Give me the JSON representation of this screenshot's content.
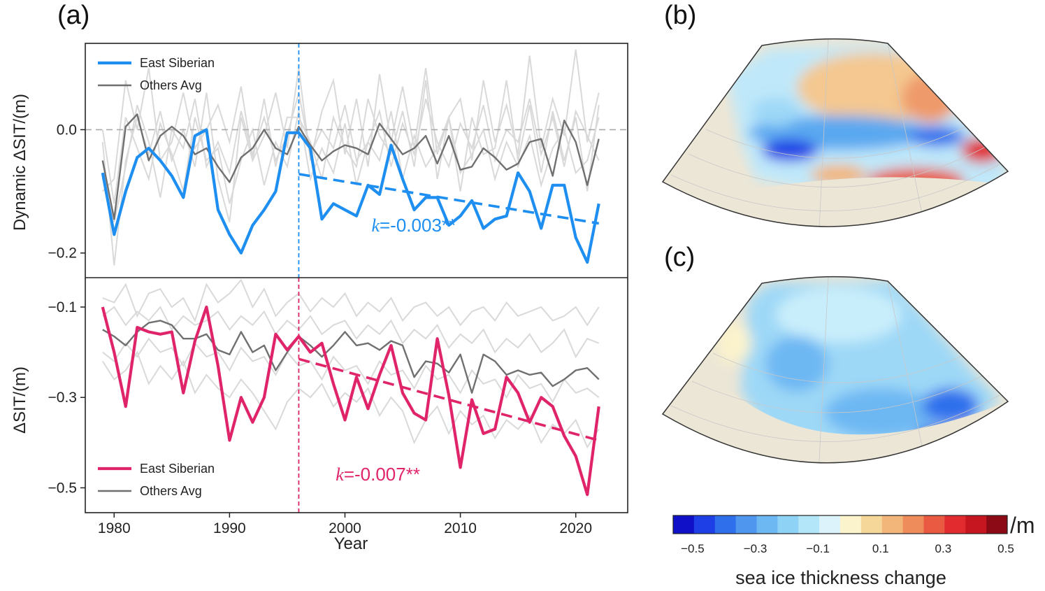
{
  "panel_labels": {
    "a": "(a)",
    "b": "(b)",
    "c": "(c)"
  },
  "colors": {
    "east_siberian_top": "#1e8ff0",
    "east_siberian_bottom": "#e0246a",
    "others_avg": "#707070",
    "individual_regions": "#d9d9d9",
    "zero_line": "#aaaaaa",
    "land": "#ece6d6"
  },
  "chart_data": [
    {
      "type": "line",
      "panel": "a-top",
      "xlabel": "",
      "ylabel": "Dynamic ΔSIT/(m)",
      "xlim": [
        1977.5,
        2024.5
      ],
      "ylim": [
        -0.24,
        0.14
      ],
      "xticks": [
        1980,
        1990,
        2000,
        2010,
        2020
      ],
      "yticks": [
        0.0,
        -0.2
      ],
      "ytick_labels": [
        "0.0",
        "−0.2"
      ],
      "reference_line_y": 0.0,
      "breakpoint_year": 1996,
      "legend": {
        "placement": "top-left",
        "entries": [
          "East Siberian",
          "Others Avg"
        ]
      },
      "x": [
        1979,
        1980,
        1981,
        1982,
        1983,
        1984,
        1985,
        1986,
        1987,
        1988,
        1989,
        1990,
        1991,
        1992,
        1993,
        1994,
        1995,
        1996,
        1997,
        1998,
        1999,
        2000,
        2001,
        2002,
        2003,
        2004,
        2005,
        2006,
        2007,
        2008,
        2009,
        2010,
        2011,
        2012,
        2013,
        2014,
        2015,
        2016,
        2017,
        2018,
        2019,
        2020,
        2021,
        2022
      ],
      "series": [
        {
          "name": "East Siberian",
          "values": [
            -0.07,
            -0.17,
            -0.1,
            -0.045,
            -0.03,
            -0.05,
            -0.075,
            -0.11,
            -0.01,
            0.0,
            -0.13,
            -0.17,
            -0.2,
            -0.155,
            -0.13,
            -0.1,
            -0.005,
            -0.005,
            -0.03,
            -0.145,
            -0.12,
            -0.13,
            -0.14,
            -0.09,
            -0.105,
            -0.025,
            -0.08,
            -0.13,
            -0.11,
            -0.11,
            -0.155,
            -0.14,
            -0.115,
            -0.16,
            -0.145,
            -0.14,
            -0.07,
            -0.1,
            -0.16,
            -0.09,
            -0.09,
            -0.175,
            -0.215,
            -0.12
          ]
        },
        {
          "name": "Others Avg",
          "values": [
            -0.05,
            -0.145,
            0.005,
            0.025,
            -0.05,
            -0.01,
            0.005,
            -0.01,
            -0.04,
            -0.03,
            -0.06,
            -0.085,
            -0.045,
            -0.03,
            0.0,
            -0.03,
            -0.04,
            0.005,
            -0.025,
            -0.05,
            -0.035,
            -0.025,
            -0.03,
            -0.04,
            0.01,
            -0.015,
            -0.04,
            -0.03,
            -0.01,
            -0.055,
            -0.01,
            -0.065,
            -0.06,
            -0.03,
            -0.045,
            -0.065,
            -0.055,
            -0.02,
            -0.015,
            -0.075,
            0.015,
            -0.02,
            -0.09,
            -0.015
          ]
        }
      ],
      "background_series": [
        [
          -0.02,
          -0.22,
          -0.05,
          0.02,
          -0.04,
          0.03,
          -0.05,
          0.0,
          -0.06,
          0.06,
          -0.08,
          -0.15,
          0.02,
          -0.05,
          0.05,
          -0.06,
          0.02,
          0.02,
          -0.02,
          -0.08,
          0.02,
          -0.03,
          -0.06,
          0.05,
          -0.01,
          -0.04,
          0.03,
          -0.06,
          0.08,
          -0.08,
          0.02,
          -0.1,
          0.02,
          -0.04,
          -0.03,
          0.08,
          -0.05,
          0.04,
          -0.07,
          0.03,
          -0.05,
          0.02,
          -0.1,
          0.04
        ],
        [
          -0.1,
          -0.08,
          0.08,
          0.0,
          0.1,
          -0.05,
          -0.02,
          0.06,
          -0.03,
          0.0,
          0.04,
          -0.02,
          0.07,
          -0.05,
          -0.01,
          0.06,
          -0.03,
          0.1,
          -0.05,
          0.03,
          0.08,
          -0.04,
          0.05,
          -0.06,
          0.09,
          -0.02,
          0.07,
          -0.03,
          0.1,
          -0.04,
          0.02,
          0.05,
          -0.05,
          0.08,
          -0.02,
          0.04,
          -0.04,
          0.12,
          -0.03,
          0.05,
          -0.01,
          0.13,
          -0.02,
          0.06
        ],
        [
          0.0,
          -0.12,
          0.02,
          -0.03,
          -0.08,
          0.01,
          -0.04,
          -0.1,
          0.02,
          -0.05,
          -0.03,
          -0.12,
          -0.05,
          0.0,
          -0.09,
          -0.02,
          -0.06,
          0.03,
          -0.08,
          -0.03,
          -0.07,
          0.01,
          -0.09,
          -0.02,
          -0.05,
          0.03,
          -0.08,
          -0.01,
          -0.06,
          -0.03,
          0.02,
          -0.07,
          -0.04,
          0.0,
          -0.08,
          -0.02,
          -0.06,
          -0.01,
          -0.09,
          -0.03,
          0.0,
          -0.07,
          -0.05,
          0.02
        ],
        [
          -0.05,
          -0.15,
          -0.06,
          0.04,
          -0.02,
          -0.11,
          0.0,
          -0.03,
          0.05,
          -0.06,
          -0.02,
          -0.07,
          0.03,
          -0.04,
          0.02,
          -0.05,
          -0.01,
          0.06,
          -0.04,
          0.0,
          -0.03,
          0.04,
          -0.05,
          -0.02,
          0.03,
          -0.06,
          0.01,
          -0.04,
          0.05,
          -0.02,
          -0.06,
          0.01,
          -0.03,
          0.04,
          -0.05,
          0.0,
          -0.02,
          0.05,
          -0.04,
          0.02,
          -0.06,
          0.03,
          -0.01,
          -0.05
        ]
      ],
      "trend": {
        "x": [
          1996,
          2022
        ],
        "y": [
          -0.072,
          -0.152
        ],
        "label_k": "k",
        "label_rest": "=-0.003**"
      }
    },
    {
      "type": "line",
      "panel": "a-bottom",
      "xlabel": "Year",
      "ylabel": "ΔSIT/(m)",
      "xlim": [
        1977.5,
        2024.5
      ],
      "ylim": [
        -0.555,
        -0.035
      ],
      "xticks": [
        1980,
        1990,
        2000,
        2010,
        2020
      ],
      "yticks": [
        -0.1,
        -0.3,
        -0.5
      ],
      "ytick_labels": [
        "−0.1",
        "−0.3",
        "−0.5"
      ],
      "breakpoint_year": 1996,
      "legend": {
        "placement": "bottom-left",
        "entries": [
          "East Siberian",
          "Others Avg"
        ]
      },
      "x": [
        1979,
        1980,
        1981,
        1982,
        1983,
        1984,
        1985,
        1986,
        1987,
        1988,
        1989,
        1990,
        1991,
        1992,
        1993,
        1994,
        1995,
        1996,
        1997,
        1998,
        1999,
        2000,
        2001,
        2002,
        2003,
        2004,
        2005,
        2006,
        2007,
        2008,
        2009,
        2010,
        2011,
        2012,
        2013,
        2014,
        2015,
        2016,
        2017,
        2018,
        2019,
        2020,
        2021,
        2022
      ],
      "series": [
        {
          "name": "East Siberian",
          "values": [
            -0.1,
            -0.2,
            -0.32,
            -0.145,
            -0.155,
            -0.16,
            -0.155,
            -0.29,
            -0.175,
            -0.1,
            -0.23,
            -0.395,
            -0.3,
            -0.355,
            -0.3,
            -0.16,
            -0.195,
            -0.165,
            -0.2,
            -0.18,
            -0.27,
            -0.35,
            -0.255,
            -0.325,
            -0.25,
            -0.185,
            -0.29,
            -0.335,
            -0.35,
            -0.17,
            -0.295,
            -0.455,
            -0.305,
            -0.38,
            -0.37,
            -0.255,
            -0.29,
            -0.355,
            -0.3,
            -0.32,
            -0.385,
            -0.43,
            -0.515,
            -0.32
          ]
        },
        {
          "name": "Others Avg",
          "values": [
            -0.15,
            -0.165,
            -0.185,
            -0.155,
            -0.135,
            -0.13,
            -0.14,
            -0.17,
            -0.17,
            -0.16,
            -0.195,
            -0.205,
            -0.155,
            -0.2,
            -0.185,
            -0.24,
            -0.2,
            -0.165,
            -0.185,
            -0.21,
            -0.185,
            -0.155,
            -0.185,
            -0.18,
            -0.195,
            -0.175,
            -0.185,
            -0.255,
            -0.22,
            -0.225,
            -0.245,
            -0.205,
            -0.29,
            -0.205,
            -0.22,
            -0.25,
            -0.24,
            -0.25,
            -0.245,
            -0.275,
            -0.26,
            -0.24,
            -0.235,
            -0.26
          ]
        }
      ],
      "background_series": [
        [
          -0.08,
          -0.09,
          -0.05,
          -0.12,
          -0.07,
          -0.06,
          -0.1,
          -0.08,
          -0.13,
          -0.05,
          -0.09,
          -0.07,
          -0.04,
          -0.1,
          -0.06,
          -0.12,
          -0.09,
          -0.07,
          -0.11,
          -0.08,
          -0.1,
          -0.07,
          -0.12,
          -0.09,
          -0.11,
          -0.08,
          -0.13,
          -0.1,
          -0.09,
          -0.12,
          -0.1,
          -0.14,
          -0.11,
          -0.1,
          -0.13,
          -0.09,
          -0.12,
          -0.11,
          -0.1,
          -0.13,
          -0.12,
          -0.1,
          -0.14,
          -0.1
        ],
        [
          -0.12,
          -0.1,
          -0.14,
          -0.11,
          -0.13,
          -0.1,
          -0.15,
          -0.12,
          -0.14,
          -0.13,
          -0.11,
          -0.15,
          -0.12,
          -0.14,
          -0.11,
          -0.16,
          -0.13,
          -0.15,
          -0.12,
          -0.16,
          -0.14,
          -0.13,
          -0.17,
          -0.14,
          -0.16,
          -0.13,
          -0.18,
          -0.15,
          -0.17,
          -0.14,
          -0.19,
          -0.16,
          -0.18,
          -0.15,
          -0.2,
          -0.17,
          -0.19,
          -0.16,
          -0.2,
          -0.18,
          -0.15,
          -0.21,
          -0.17,
          -0.18
        ],
        [
          -0.2,
          -0.22,
          -0.18,
          -0.21,
          -0.17,
          -0.2,
          -0.19,
          -0.23,
          -0.18,
          -0.21,
          -0.2,
          -0.24,
          -0.19,
          -0.22,
          -0.21,
          -0.25,
          -0.2,
          -0.23,
          -0.22,
          -0.26,
          -0.21,
          -0.24,
          -0.23,
          -0.27,
          -0.22,
          -0.25,
          -0.24,
          -0.28,
          -0.23,
          -0.26,
          -0.25,
          -0.29,
          -0.24,
          -0.27,
          -0.26,
          -0.3,
          -0.25,
          -0.28,
          -0.27,
          -0.31,
          -0.26,
          -0.29,
          -0.28,
          -0.3
        ],
        [
          -0.22,
          -0.26,
          -0.24,
          -0.2,
          -0.27,
          -0.23,
          -0.26,
          -0.22,
          -0.29,
          -0.25,
          -0.28,
          -0.3,
          -0.26,
          -0.29,
          -0.33,
          -0.37,
          -0.31,
          -0.28,
          -0.3,
          -0.27,
          -0.32,
          -0.29,
          -0.31,
          -0.28,
          -0.34,
          -0.3,
          -0.33,
          -0.4,
          -0.35,
          -0.32,
          -0.38,
          -0.33,
          -0.36,
          -0.34,
          -0.39,
          -0.35,
          -0.37,
          -0.34,
          -0.4,
          -0.36,
          -0.38,
          -0.35,
          -0.41,
          -0.37
        ]
      ],
      "trend": {
        "x": [
          1996,
          2022
        ],
        "y": [
          -0.215,
          -0.395
        ],
        "label_k": "k",
        "label_rest": "=-0.007**"
      }
    },
    {
      "type": "heatmap",
      "panel": "b",
      "description_of_content": null,
      "colorbar_shared": true
    },
    {
      "type": "heatmap",
      "panel": "c",
      "colorbar_shared": true
    }
  ],
  "colorbar": {
    "label": "sea ice thickness change",
    "unit": "/m",
    "tick_labels": [
      "−0.5",
      "−0.3",
      "−0.1",
      "0.1",
      "0.3",
      "0.5"
    ],
    "colors": [
      "#1010c8",
      "#1f3fe6",
      "#2f6fec",
      "#4f96ee",
      "#6db7f3",
      "#8ed2f6",
      "#b4e6fa",
      "#dcf3fb",
      "#fbf3cc",
      "#f6d79a",
      "#f2b67a",
      "#ef8c5c",
      "#ea5a43",
      "#e12b2e",
      "#c6161f",
      "#8c0a16"
    ]
  }
}
